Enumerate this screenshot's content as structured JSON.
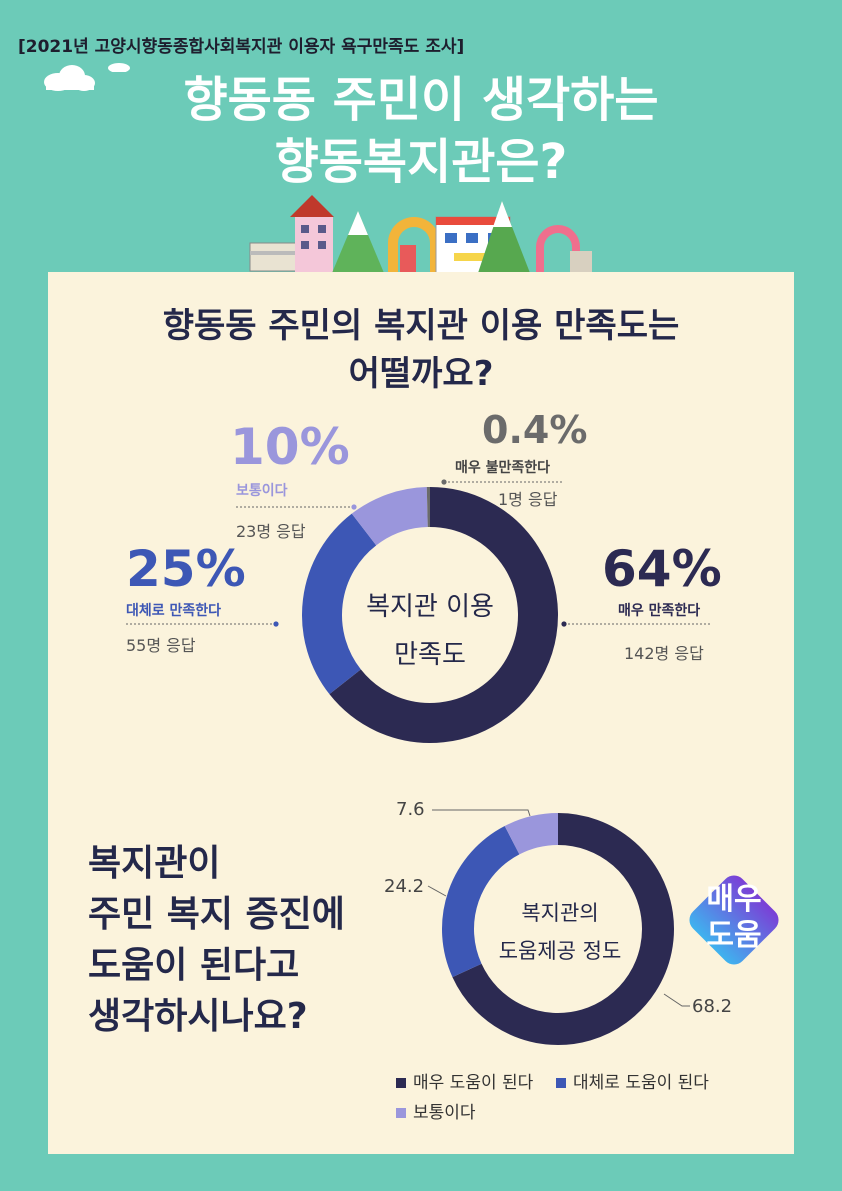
{
  "header": {
    "tag": "[2021년 고양시향동종합사회복지관 이용자 욕구만족도 조사]",
    "title_line1": "향동동 주민이 생각하는",
    "title_line2": "향동복지관은?"
  },
  "section1": {
    "question_line1": "향동동 주민의 복지관 이용 만족도는",
    "question_line2": "어떨까요?",
    "center_line1": "복지관 이용",
    "center_line2": "만족도"
  },
  "section2": {
    "question_lines": [
      "복지관이",
      "주민 복지 증진에",
      "도움이 된다고",
      "생각하시나요?"
    ],
    "center_line1": "복지관의",
    "center_line2": "도움제공 정도",
    "badge_line1": "매우",
    "badge_line2": "도움"
  },
  "colors": {
    "dark_navy": "#2c2a52",
    "royal_blue": "#3d57b5",
    "lavender": "#9a96dc",
    "gray": "#6b6b6b"
  },
  "chart_data": [
    {
      "type": "pie",
      "title": "복지관 이용 만족도",
      "slices": [
        {
          "label": "매우 만족한다",
          "percent_label": "64%",
          "value": 64,
          "count_label": "142명 응답",
          "color": "#2c2a52"
        },
        {
          "label": "대체로 만족한다",
          "percent_label": "25%",
          "value": 25,
          "count_label": "55명 응답",
          "color": "#3d57b5"
        },
        {
          "label": "보통이다",
          "percent_label": "10%",
          "value": 10,
          "count_label": "23명 응답",
          "color": "#9a96dc"
        },
        {
          "label": "매우 불만족한다",
          "percent_label": "0.4%",
          "value": 0.4,
          "count_label": "1명 응답",
          "color": "#6b6b6b"
        }
      ]
    },
    {
      "type": "pie",
      "title": "복지관의 도움제공 정도",
      "slices": [
        {
          "label": "매우 도움이 된다",
          "value": 68.2,
          "value_label": "68.2",
          "color": "#2c2a52"
        },
        {
          "label": "대체로 도움이 된다",
          "value": 24.2,
          "value_label": "24.2",
          "color": "#3d57b5"
        },
        {
          "label": "보통이다",
          "value": 7.6,
          "value_label": "7.6",
          "color": "#9a96dc"
        }
      ],
      "legend": [
        "매우 도움이 된다",
        "대체로 도움이 된다",
        "보통이다"
      ]
    }
  ]
}
